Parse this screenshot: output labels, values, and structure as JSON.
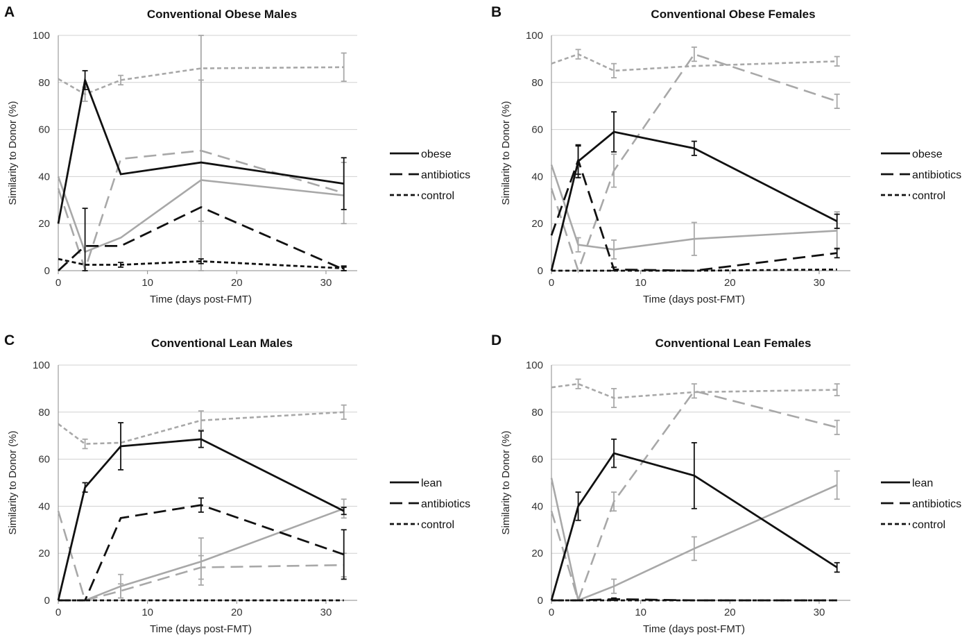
{
  "colors": {
    "black": "#111111",
    "gray": "#a8a8a8"
  },
  "chart_data": [
    {
      "panel": "A",
      "type": "line",
      "title": "Conventional Obese Males",
      "xlabel": "Time (days post-FMT)",
      "ylabel": "Similarity to Donor (%)",
      "xlim": [
        0,
        32
      ],
      "ylim": [
        0,
        100
      ],
      "xticks": [
        "0",
        "10",
        "20",
        "30"
      ],
      "yticks": [
        "0",
        "20",
        "40",
        "60",
        "80",
        "100"
      ],
      "legend": [
        "obese",
        "antibiotics",
        "control"
      ],
      "series": [
        {
          "name": "obese",
          "color": "black",
          "dash": "solid",
          "x": [
            0,
            3,
            7,
            16,
            32
          ],
          "y": [
            20,
            81,
            41,
            46,
            37
          ],
          "err": [
            0,
            4,
            0,
            0,
            11
          ]
        },
        {
          "name": "antibiotics",
          "color": "black",
          "dash": "long",
          "x": [
            0,
            3,
            7,
            16,
            32
          ],
          "y": [
            0,
            10.5,
            10.5,
            27,
            0.5
          ],
          "err": [
            0,
            16,
            0,
            0,
            1
          ]
        },
        {
          "name": "control",
          "color": "black",
          "dash": "short",
          "x": [
            0,
            3,
            7,
            16,
            32
          ],
          "y": [
            5,
            2.5,
            2.5,
            4,
            1
          ],
          "err": [
            0,
            0,
            1,
            1,
            1
          ]
        },
        {
          "name": "obese (gray)",
          "color": "gray",
          "dash": "solid",
          "x": [
            0,
            3,
            7,
            16,
            32
          ],
          "y": [
            40,
            8,
            14,
            38.5,
            32
          ],
          "err": [
            0,
            0,
            0,
            62,
            0
          ]
        },
        {
          "name": "antibiotics (gray)",
          "color": "gray",
          "dash": "long",
          "x": [
            0,
            3,
            7,
            16,
            32
          ],
          "y": [
            35,
            0.5,
            47.5,
            51,
            33
          ],
          "err": [
            0,
            0,
            0,
            30,
            13
          ]
        },
        {
          "name": "control (gray)",
          "color": "gray",
          "dash": "short",
          "x": [
            0,
            3,
            7,
            16,
            32
          ],
          "y": [
            81.5,
            75,
            81,
            86,
            86.5
          ],
          "err": [
            0,
            3,
            2,
            0,
            6
          ]
        }
      ]
    },
    {
      "panel": "B",
      "type": "line",
      "title": "Conventional Obese Females",
      "xlabel": "Time (days post-FMT)",
      "ylabel": "Similarity to Donor (%)",
      "xlim": [
        0,
        32
      ],
      "ylim": [
        0,
        100
      ],
      "xticks": [
        "0",
        "10",
        "20",
        "30"
      ],
      "yticks": [
        "0",
        "20",
        "40",
        "60",
        "80",
        "100"
      ],
      "legend": [
        "obese",
        "antibiotics",
        "control"
      ],
      "series": [
        {
          "name": "obese",
          "color": "black",
          "dash": "solid",
          "x": [
            0,
            3,
            7,
            16,
            32
          ],
          "y": [
            0,
            46.5,
            59,
            52,
            21
          ],
          "err": [
            0,
            7,
            8.5,
            3,
            3
          ]
        },
        {
          "name": "antibiotics",
          "color": "black",
          "dash": "long",
          "x": [
            0,
            3,
            7,
            16,
            32
          ],
          "y": [
            15,
            47,
            0.5,
            0,
            7.5
          ],
          "err": [
            0,
            6,
            1,
            0,
            2
          ]
        },
        {
          "name": "control",
          "color": "black",
          "dash": "short",
          "x": [
            0,
            3,
            7,
            16,
            32
          ],
          "y": [
            0,
            0,
            0,
            0,
            0.5
          ],
          "err": [
            0,
            0,
            0,
            0,
            0
          ]
        },
        {
          "name": "obese (gray)",
          "color": "gray",
          "dash": "solid",
          "x": [
            0,
            3,
            7,
            16,
            32
          ],
          "y": [
            45,
            11,
            9,
            13.5,
            17
          ],
          "err": [
            0,
            3,
            4,
            7,
            8
          ]
        },
        {
          "name": "antibiotics (gray)",
          "color": "gray",
          "dash": "long",
          "x": [
            0,
            3,
            7,
            16,
            32
          ],
          "y": [
            35,
            0,
            42.5,
            92,
            72
          ],
          "err": [
            0,
            0,
            7,
            3,
            3
          ]
        },
        {
          "name": "control (gray)",
          "color": "gray",
          "dash": "short",
          "x": [
            0,
            3,
            7,
            16,
            32
          ],
          "y": [
            88,
            92,
            85,
            87,
            89
          ],
          "err": [
            0,
            2,
            3,
            0,
            2
          ]
        }
      ]
    },
    {
      "panel": "C",
      "type": "line",
      "title": "Conventional Lean Males",
      "xlabel": "Time (days post-FMT)",
      "ylabel": "Similarity to Donor (%)",
      "xlim": [
        0,
        32
      ],
      "ylim": [
        0,
        100
      ],
      "xticks": [
        "0",
        "10",
        "20",
        "30"
      ],
      "yticks": [
        "0",
        "20",
        "40",
        "60",
        "80",
        "100"
      ],
      "legend": [
        "lean",
        "antibiotics",
        "control"
      ],
      "series": [
        {
          "name": "lean",
          "color": "black",
          "dash": "solid",
          "x": [
            0,
            3,
            7,
            16,
            32
          ],
          "y": [
            0,
            48,
            65.5,
            68.5,
            38
          ],
          "err": [
            0,
            2,
            10,
            3.5,
            1.5
          ]
        },
        {
          "name": "antibiotics",
          "color": "black",
          "dash": "long",
          "x": [
            0,
            3,
            7,
            16,
            32
          ],
          "y": [
            0,
            0,
            35,
            40.5,
            19.5
          ],
          "err": [
            0,
            0,
            0,
            3,
            10.5
          ]
        },
        {
          "name": "control",
          "color": "black",
          "dash": "short",
          "x": [
            0,
            3,
            7,
            16,
            32
          ],
          "y": [
            0,
            0,
            0,
            0,
            0
          ],
          "err": [
            0,
            0,
            0,
            0,
            0
          ]
        },
        {
          "name": "lean (gray)",
          "color": "gray",
          "dash": "solid",
          "x": [
            0,
            3,
            7,
            16,
            32
          ],
          "y": [
            0,
            0,
            6,
            16.5,
            39
          ],
          "err": [
            0,
            0,
            5,
            10,
            4
          ]
        },
        {
          "name": "antibiotics (gray)",
          "color": "gray",
          "dash": "long",
          "x": [
            0,
            3,
            7,
            16,
            32
          ],
          "y": [
            38,
            0,
            4,
            14,
            15
          ],
          "err": [
            0,
            0,
            3,
            5,
            5
          ]
        },
        {
          "name": "control (gray)",
          "color": "gray",
          "dash": "short",
          "x": [
            0,
            3,
            7,
            16,
            32
          ],
          "y": [
            75,
            66.5,
            67,
            76.5,
            80
          ],
          "err": [
            0,
            2,
            0,
            4,
            3
          ]
        }
      ]
    },
    {
      "panel": "D",
      "type": "line",
      "title": "Conventional Lean Females",
      "xlabel": "Time (days post-FMT)",
      "ylabel": "Similarity to Donor (%)",
      "xlim": [
        0,
        32
      ],
      "ylim": [
        0,
        100
      ],
      "xticks": [
        "0",
        "10",
        "20",
        "30"
      ],
      "yticks": [
        "0",
        "20",
        "40",
        "60",
        "80",
        "100"
      ],
      "legend": [
        "lean",
        "antibiotics",
        "control"
      ],
      "series": [
        {
          "name": "lean",
          "color": "black",
          "dash": "solid",
          "x": [
            0,
            3,
            7,
            16,
            32
          ],
          "y": [
            0,
            40,
            62.5,
            53,
            14
          ],
          "err": [
            0,
            6,
            6,
            14,
            2
          ]
        },
        {
          "name": "antibiotics",
          "color": "black",
          "dash": "long",
          "x": [
            0,
            3,
            7,
            16,
            32
          ],
          "y": [
            0,
            0,
            0.5,
            0,
            0
          ],
          "err": [
            0,
            0,
            0.5,
            0,
            0
          ]
        },
        {
          "name": "control",
          "color": "black",
          "dash": "short",
          "x": [
            0,
            3,
            7,
            16,
            32
          ],
          "y": [
            0,
            0,
            0,
            0,
            0
          ],
          "err": [
            0,
            0,
            0,
            0,
            0
          ]
        },
        {
          "name": "lean (gray)",
          "color": "gray",
          "dash": "solid",
          "x": [
            0,
            3,
            7,
            16,
            32
          ],
          "y": [
            52,
            0,
            6,
            22,
            49
          ],
          "err": [
            0,
            0,
            3,
            5,
            6
          ]
        },
        {
          "name": "antibiotics (gray)",
          "color": "gray",
          "dash": "long",
          "x": [
            0,
            3,
            7,
            16,
            32
          ],
          "y": [
            38,
            0,
            42,
            89,
            73.5
          ],
          "err": [
            0,
            0,
            4,
            3,
            3
          ]
        },
        {
          "name": "control (gray)",
          "color": "gray",
          "dash": "short",
          "x": [
            0,
            3,
            7,
            16,
            32
          ],
          "y": [
            90.5,
            92,
            86,
            88.5,
            89.5
          ],
          "err": [
            0,
            2,
            4,
            0,
            2.5
          ]
        }
      ]
    }
  ]
}
